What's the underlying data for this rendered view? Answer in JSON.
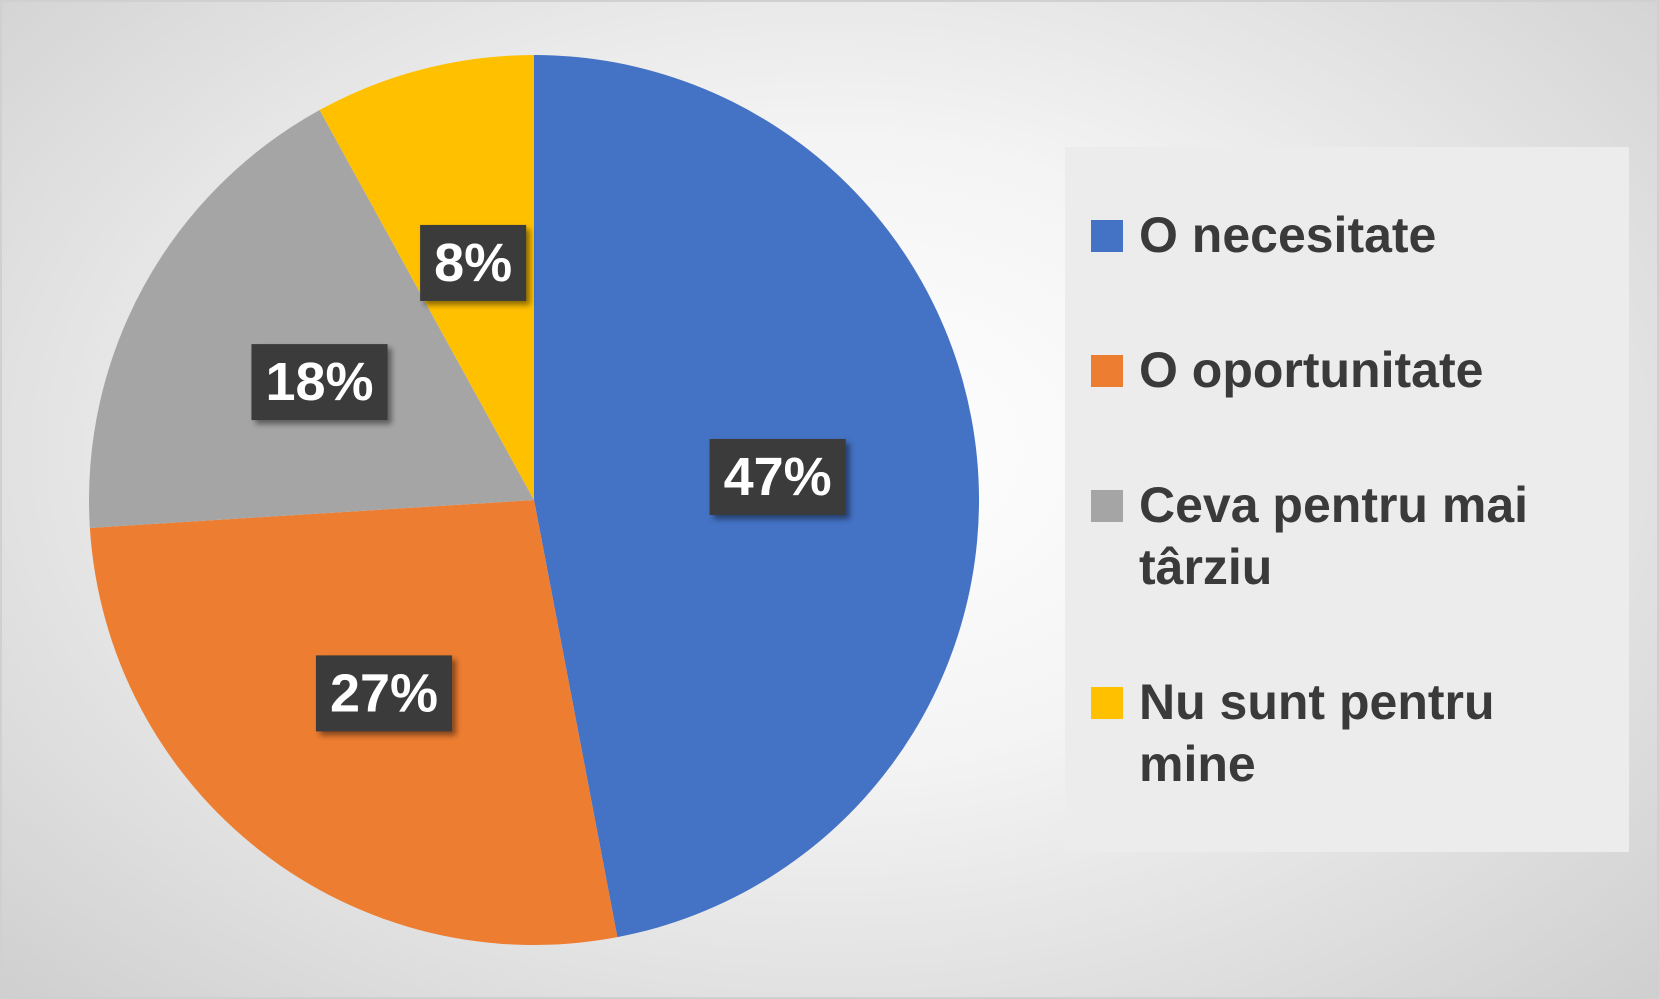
{
  "chart_data": {
    "type": "pie",
    "categories": [
      "O necesitate",
      "O oportunitate",
      "Ceva pentru mai târziu",
      "Nu sunt pentru mine"
    ],
    "values": [
      47,
      27,
      18,
      8
    ],
    "value_labels": [
      "47%",
      "27%",
      "18%",
      "8%"
    ],
    "colors": [
      "#4472c4",
      "#ed7d31",
      "#a5a5a5",
      "#ffc000"
    ],
    "legend": "right"
  }
}
